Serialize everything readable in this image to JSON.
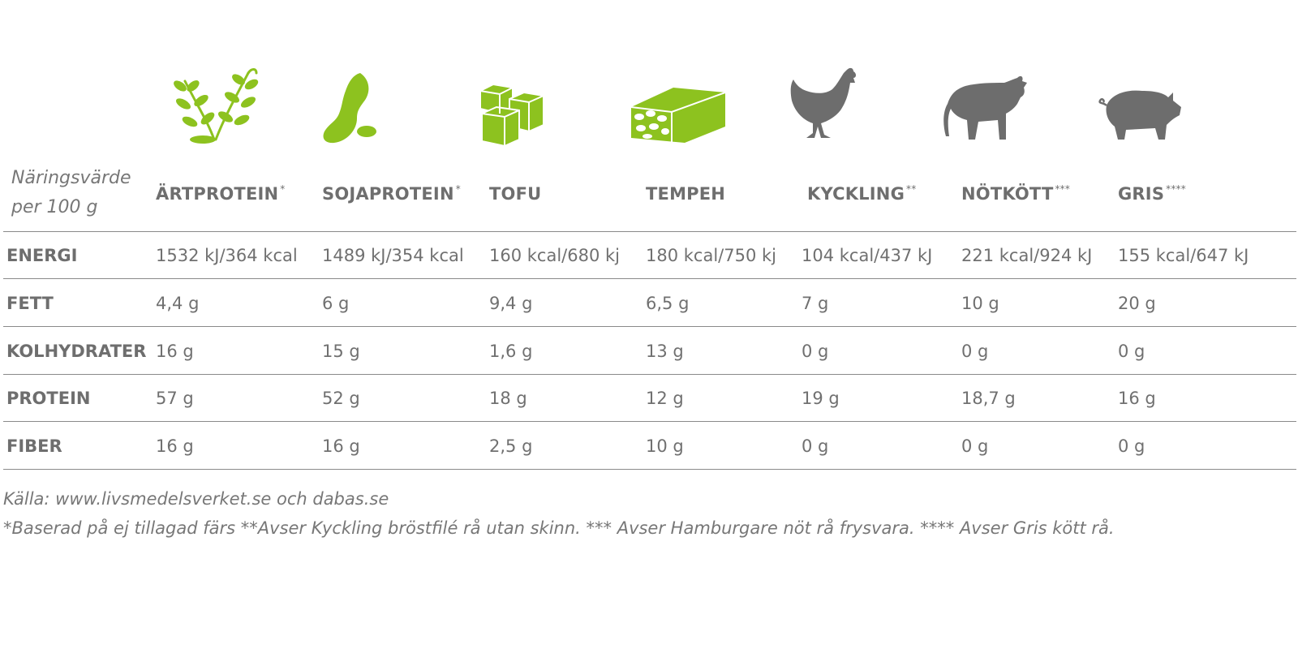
{
  "header_label_line1": "Näringsvärde",
  "header_label_line2": "per 100 g",
  "columns": [
    {
      "name": "ÄRTPROTEIN",
      "mark": "*",
      "icon": "pea-plant-icon",
      "color": "#8dc21f"
    },
    {
      "name": "SOJAPROTEIN",
      "mark": "*",
      "icon": "soybean-icon",
      "color": "#8dc21f"
    },
    {
      "name": "TOFU",
      "mark": "",
      "icon": "tofu-cubes-icon",
      "color": "#8dc21f"
    },
    {
      "name": "TEMPEH",
      "mark": "",
      "icon": "tempeh-block-icon",
      "color": "#8dc21f"
    },
    {
      "name": "KYCKLING",
      "mark": "**",
      "icon": "chicken-icon",
      "color": "#6d6d6d"
    },
    {
      "name": "NÖTKÖTT",
      "mark": "***",
      "icon": "cow-icon",
      "color": "#6d6d6d"
    },
    {
      "name": "GRIS",
      "mark": "****",
      "icon": "pig-icon",
      "color": "#6d6d6d"
    }
  ],
  "rows": [
    {
      "label": "ENERGI",
      "values": [
        "1532 kJ/364 kcal",
        "1489 kJ/354 kcal",
        "160 kcal/680 kj",
        "180 kcal/750 kj",
        "104 kcal/437 kJ",
        "221 kcal/924 kJ",
        "155 kcal/647 kJ"
      ]
    },
    {
      "label": "FETT",
      "values": [
        "4,4 g",
        "6 g",
        "9,4 g",
        "6,5 g",
        "7 g",
        "10 g",
        "20 g"
      ]
    },
    {
      "label": "KOLHYDRATER",
      "values": [
        "16 g",
        "15 g",
        "1,6 g",
        "13 g",
        "0 g",
        "0 g",
        "0 g"
      ]
    },
    {
      "label": "PROTEIN",
      "values": [
        "57 g",
        "52 g",
        "18 g",
        "12 g",
        "19 g",
        "18,7 g",
        "16 g"
      ]
    },
    {
      "label": "FIBER",
      "values": [
        "16 g",
        "16 g",
        "2,5 g",
        "10 g",
        "0 g",
        "0 g",
        "0 g"
      ]
    }
  ],
  "footnote_source": "Källa: www.livsmedelsverket.se och dabas.se",
  "footnote_notes": "*Baserad på ej tillagad färs  **Avser Kyckling bröstfilé rå utan skinn. *** Avser Hamburgare nöt rå frysvara. **** Avser Gris kött rå."
}
